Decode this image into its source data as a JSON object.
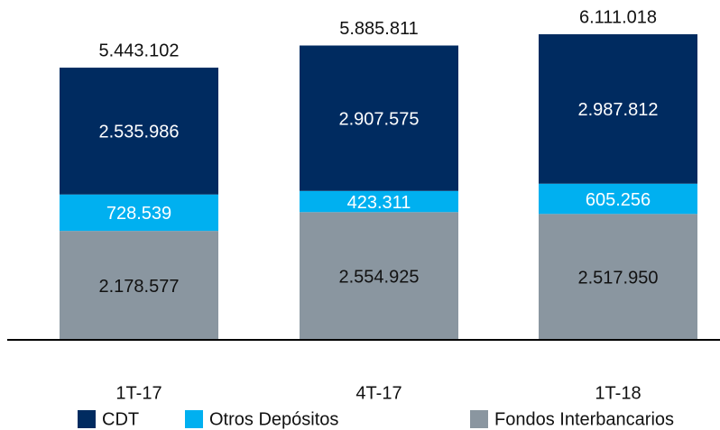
{
  "chart_data": {
    "type": "stacked_bar",
    "categories": [
      "1T-17",
      "4T-17",
      "1T-18"
    ],
    "series": [
      {
        "name": "CDT",
        "color": "#002b60",
        "label_color": "#ffffff",
        "values": [
          2535986,
          2907575,
          2987812
        ],
        "value_labels": [
          "2.535.986",
          "2.907.575",
          "2.987.812"
        ]
      },
      {
        "name": "Otros Depósitos",
        "color": "#00b0f0",
        "label_color": "#ffffff",
        "values": [
          728539,
          423311,
          605256
        ],
        "value_labels": [
          "728.539",
          "423.311",
          "605.256"
        ]
      },
      {
        "name": "Fondos Interbancarios",
        "color": "#8a96a0",
        "label_color": "#111111",
        "values": [
          2178577,
          2554925,
          2517950
        ],
        "value_labels": [
          "2.178.577",
          "2.554.925",
          "2.517.950"
        ]
      }
    ],
    "totals": [
      5443102,
      5885811,
      6111018
    ],
    "total_labels": [
      "5.443.102",
      "5.885.811",
      "6.111.018"
    ],
    "legend": "bottom"
  }
}
